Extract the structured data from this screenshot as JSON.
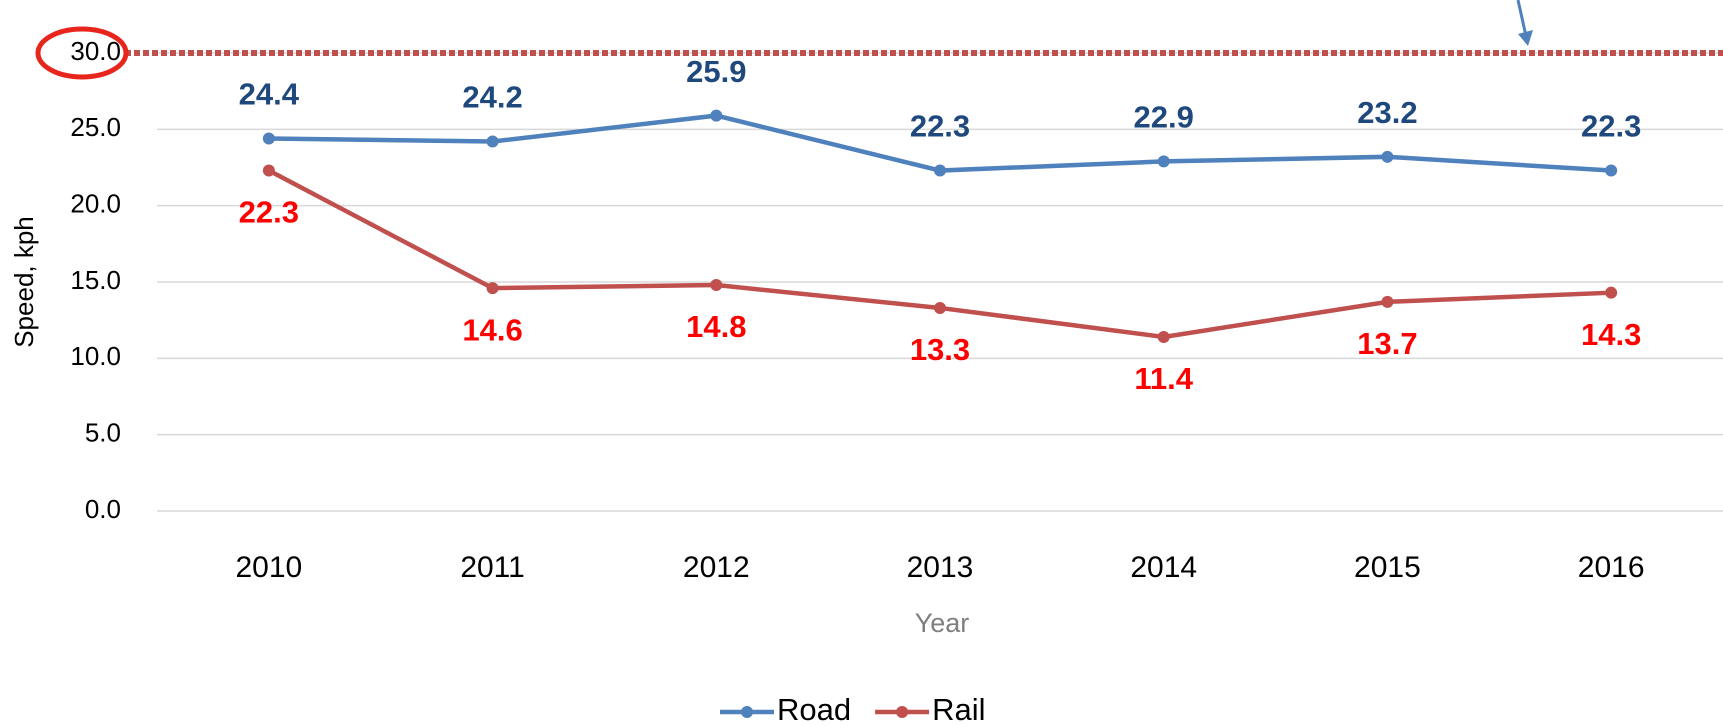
{
  "chart_data": {
    "type": "line",
    "x_label": "Year",
    "y_label": "Speed, kph",
    "categories": [
      "2010",
      "2011",
      "2012",
      "2013",
      "2014",
      "2015",
      "2016"
    ],
    "series": [
      {
        "name": "Road",
        "color": "#4f81bd",
        "label_color": "#1f497d",
        "values": [
          24.4,
          24.2,
          25.9,
          22.3,
          22.9,
          23.2,
          22.3
        ]
      },
      {
        "name": "Rail",
        "color": "#c0504d",
        "label_color": "#ff0000",
        "values": [
          22.3,
          14.6,
          14.8,
          13.3,
          11.4,
          13.7,
          14.3
        ]
      }
    ],
    "reference_line": {
      "value": 30,
      "color": "#c0504d"
    },
    "ylim": [
      0,
      30
    ],
    "yticks": [
      {
        "value": 0,
        "label": "0.0"
      },
      {
        "value": 5,
        "label": "5.0"
      },
      {
        "value": 10,
        "label": "10.0"
      },
      {
        "value": 15,
        "label": "15.0"
      },
      {
        "value": 20,
        "label": "20.0"
      },
      {
        "value": 25,
        "label": "25.0"
      },
      {
        "value": 30,
        "label": "30.0"
      }
    ],
    "grid": true,
    "legend": "bottom"
  }
}
